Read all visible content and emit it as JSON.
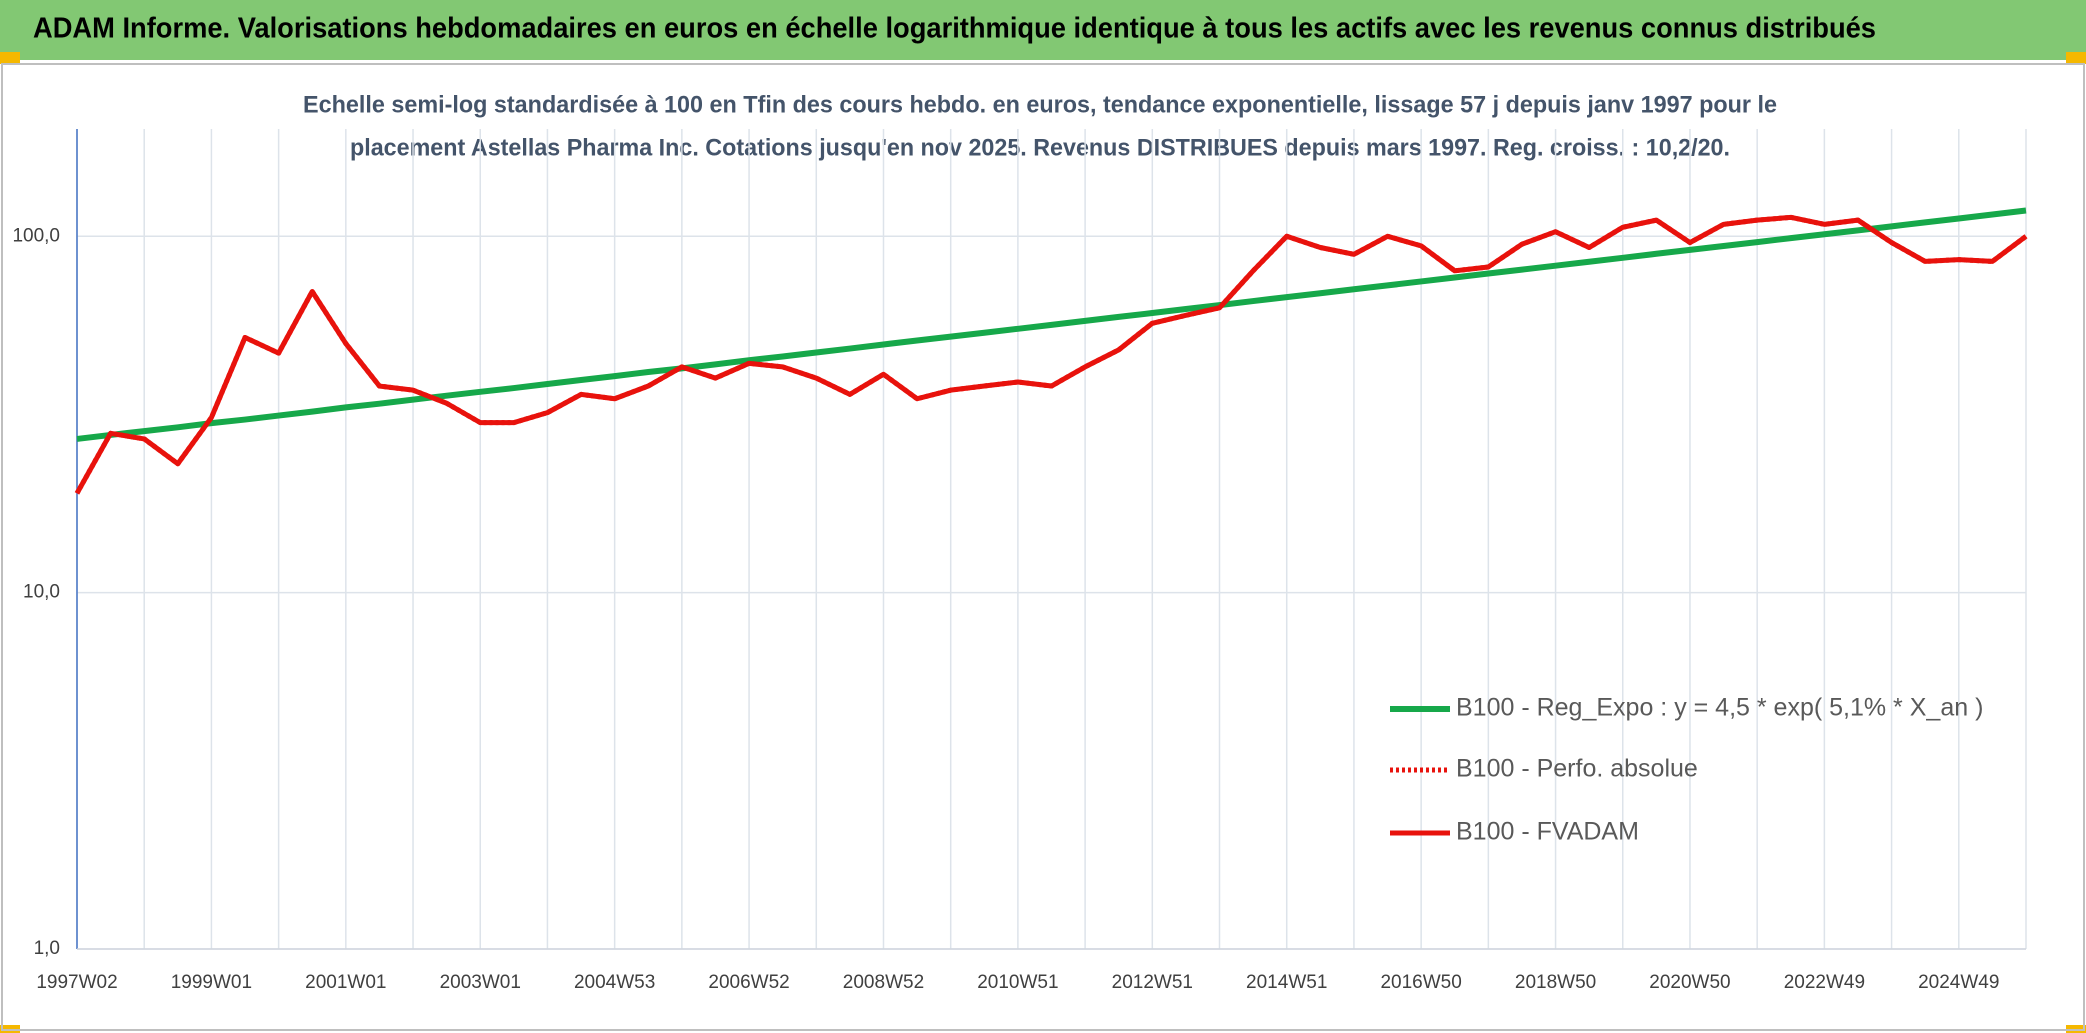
{
  "chart_data": {
    "type": "line",
    "title": "ADAM Informe. Valorisations hebdomadaires en euros en échelle logarithmique identique à tous les actifs avec les revenus connus distribués",
    "subtitle": [
      "Echelle semi-log standardisée à 100 en Tfin des cours hebdo. en euros, tendance exponentielle, lissage 57 j depuis janv 1997 pour le",
      "placement Astellas Pharma Inc. Cotations jusqu'en nov 2025. Revenus DISTRIBUES depuis mars 1997. Reg. croiss. : 10,2/20."
    ],
    "categories": [
      "1997W02",
      null,
      null,
      null,
      "1999W01",
      null,
      null,
      null,
      "2001W01",
      null,
      null,
      null,
      "2003W01",
      null,
      null,
      null,
      "2004W53",
      null,
      null,
      null,
      "2006W52",
      null,
      null,
      null,
      "2008W52",
      null,
      null,
      null,
      "2010W51",
      null,
      null,
      null,
      "2012W51",
      null,
      null,
      null,
      "2014W51",
      null,
      null,
      null,
      "2016W50",
      null,
      null,
      null,
      "2018W50",
      null,
      null,
      null,
      "2020W50",
      null,
      null,
      null,
      "2022W49",
      null,
      null,
      null,
      "2024W49",
      null,
      null
    ],
    "ylim": [
      1,
      200
    ],
    "yticks": [
      {
        "value": 1,
        "label": "1,0"
      },
      {
        "value": 10,
        "label": "10,0"
      },
      {
        "value": 100,
        "label": "100,0"
      }
    ],
    "log_scale": true,
    "grid": true,
    "legend": "bottom-right",
    "series": [
      {
        "name": "B100 - Reg_Expo : y = 4,5 * exp( 5,1% *  X_an )",
        "color": "#16a84a",
        "dash": "solid",
        "values": [
          27.0,
          27.7,
          28.4,
          29.1,
          29.9,
          30.6,
          31.4,
          32.2,
          33.1,
          33.9,
          34.8,
          35.7,
          36.6,
          37.5,
          38.5,
          39.5,
          40.5,
          41.6,
          42.6,
          43.7,
          44.9,
          46.0,
          47.2,
          48.4,
          49.7,
          51.0,
          52.3,
          53.6,
          55.0,
          56.4,
          57.9,
          59.4,
          60.9,
          62.5,
          64.1,
          65.8,
          67.5,
          69.2,
          71.0,
          72.8,
          74.7,
          76.6,
          78.6,
          80.6,
          82.7,
          84.8,
          87.0,
          89.3,
          91.6,
          93.9,
          96.3,
          98.8,
          101.3,
          103.9,
          106.6,
          109.4,
          112.2,
          115.1,
          118.1
        ]
      },
      {
        "name": "B100 - Perfo. absolue",
        "color": "#e8120c",
        "dash": "dotted",
        "values": [
          19,
          28,
          27,
          23,
          31,
          52,
          47,
          70,
          50,
          38,
          37,
          34,
          30,
          30,
          32,
          36,
          35,
          38,
          43,
          40,
          44,
          43,
          40,
          36,
          41,
          35,
          37,
          38,
          39,
          38,
          43,
          48,
          57,
          60,
          63,
          80,
          100,
          93,
          89,
          100,
          94,
          80,
          82,
          95,
          103,
          93,
          106,
          111,
          96,
          108,
          111,
          113,
          108,
          111,
          96,
          85,
          86,
          85,
          100
        ]
      },
      {
        "name": "B100 - FVADAM",
        "color": "#e8120c",
        "dash": "solid",
        "values": [
          19,
          28,
          27,
          23,
          31,
          52,
          47,
          70,
          50,
          38,
          37,
          34,
          30,
          30,
          32,
          36,
          35,
          38,
          43,
          40,
          44,
          43,
          40,
          36,
          41,
          35,
          37,
          38,
          39,
          38,
          43,
          48,
          57,
          60,
          63,
          80,
          100,
          93,
          89,
          100,
          94,
          80,
          82,
          95,
          103,
          93,
          106,
          111,
          96,
          108,
          111,
          113,
          108,
          111,
          96,
          85,
          86,
          85,
          100
        ]
      }
    ]
  }
}
